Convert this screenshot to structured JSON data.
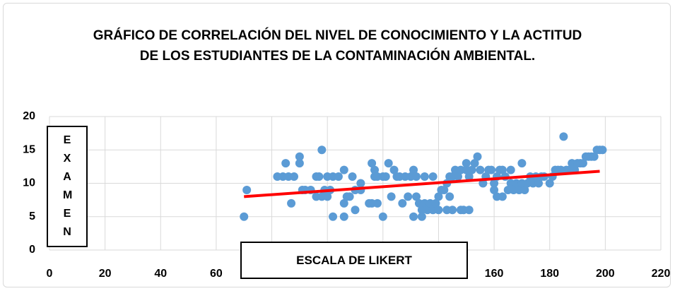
{
  "chart_data": {
    "type": "scatter",
    "title": "GRÁFICO DE CORRELACIÓN DEL NIVEL DE CONOCIMIENTO Y LA ACTITUD DE LOS ESTUDIANTES DE LA CONTAMINACIÓN AMBIENTAL.",
    "x_label": "ESCALA DE LIKERT",
    "y_label": "EXAMEN",
    "color": "#5b9bd5",
    "x": [
      70,
      71,
      82,
      84,
      85,
      86,
      87,
      88,
      90,
      90,
      91,
      92,
      94,
      96,
      96,
      97,
      98,
      98,
      99,
      100,
      100,
      101,
      102,
      102,
      104,
      106,
      106,
      106,
      107,
      108,
      109,
      110,
      110,
      112,
      112,
      115,
      116,
      116,
      117,
      117,
      118,
      118,
      120,
      120,
      121,
      122,
      123,
      124,
      125,
      126,
      127,
      128,
      129,
      130,
      131,
      131,
      132,
      132,
      133,
      134,
      134,
      135,
      135,
      136,
      137,
      138,
      138,
      139,
      140,
      140,
      141,
      142,
      143,
      143,
      144,
      144,
      145,
      145,
      146,
      147,
      148,
      148,
      149,
      150,
      150,
      151,
      151,
      152,
      153,
      154,
      155,
      156,
      157,
      158,
      159,
      160,
      160,
      161,
      161,
      162,
      163,
      163,
      164,
      165,
      166,
      166,
      167,
      168,
      169,
      170,
      170,
      171,
      172,
      173,
      174,
      175,
      176,
      177,
      178,
      180,
      181,
      182,
      183,
      184,
      185,
      186,
      187,
      188,
      189,
      190,
      191,
      192,
      193,
      194,
      195,
      196,
      197,
      198,
      199
    ],
    "y": [
      5,
      9,
      11,
      11,
      13,
      11,
      7,
      11,
      13,
      14,
      9,
      9,
      9,
      11,
      8,
      11,
      8,
      15,
      9,
      11,
      8,
      9,
      11,
      5,
      11,
      5,
      7,
      12,
      8,
      8,
      11,
      6,
      9,
      10,
      9,
      7,
      13,
      7,
      11,
      12,
      11,
      7,
      11,
      5,
      11,
      13,
      8,
      12,
      11,
      11,
      7,
      11,
      8,
      11,
      12,
      5,
      8,
      11,
      7,
      6,
      5,
      7,
      11,
      6,
      7,
      6,
      11,
      7,
      8,
      6,
      9,
      9,
      10,
      6,
      11,
      8,
      11,
      6,
      12,
      11,
      6,
      12,
      6,
      12,
      13,
      6,
      11,
      12,
      13,
      14,
      12,
      10,
      11,
      12,
      12,
      10,
      9,
      11,
      8,
      12,
      8,
      12,
      11,
      9,
      12,
      10,
      9,
      10,
      9,
      13,
      10,
      9,
      10,
      11,
      10,
      11,
      10,
      11,
      11,
      10,
      11,
      12,
      12,
      12,
      17,
      12,
      12,
      13,
      12,
      13,
      13,
      13,
      14,
      14,
      14,
      14,
      15,
      15,
      15
    ],
    "trendline": {
      "x": [
        70,
        198
      ],
      "y": [
        8.0,
        11.8
      ],
      "color": "#ff0000"
    },
    "xlim": [
      0,
      220
    ],
    "xticks": [
      0,
      20,
      40,
      60,
      80,
      100,
      120,
      140,
      160,
      180,
      200,
      220
    ],
    "ylim": [
      0,
      20
    ],
    "yticks": [
      0,
      5,
      10,
      15,
      20
    ],
    "grid": true
  }
}
